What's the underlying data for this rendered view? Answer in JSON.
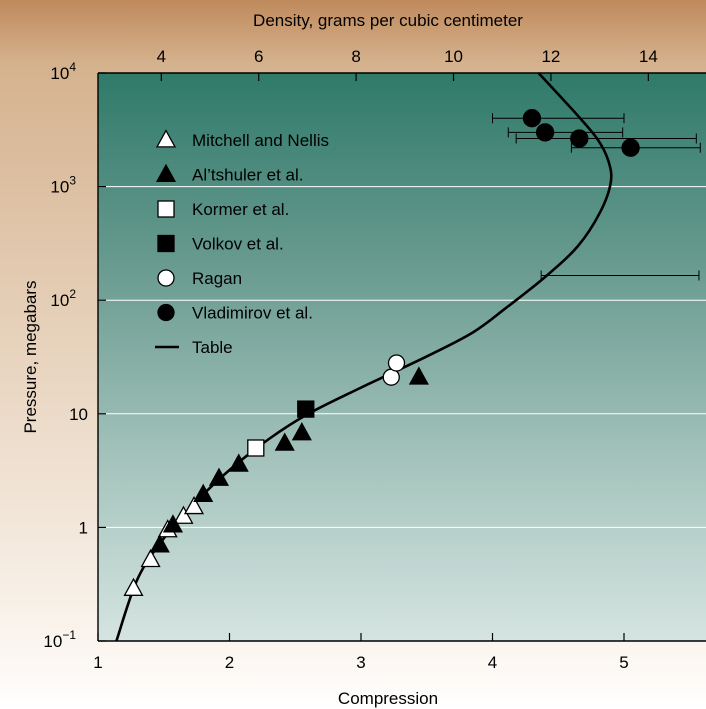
{
  "chart_data": {
    "type": "scatter",
    "xlabel": "Compression",
    "ylabel": "Pressure, megabars",
    "x2label": "Density, grams per cubic centimeter",
    "xlim": [
      1,
      5.6
    ],
    "ylim": [
      0.1,
      10000
    ],
    "yscale": "log",
    "x_ticks": [
      {
        "value": 1,
        "label": "1"
      },
      {
        "value": 2,
        "label": "2"
      },
      {
        "value": 3,
        "label": "3"
      },
      {
        "value": 4,
        "label": "4"
      },
      {
        "value": 5,
        "label": "5"
      }
    ],
    "x2_ticks": [
      {
        "value": 4,
        "label": "4"
      },
      {
        "value": 6,
        "label": "6"
      },
      {
        "value": 8,
        "label": "8"
      },
      {
        "value": 10,
        "label": "10"
      },
      {
        "value": 12,
        "label": "12"
      },
      {
        "value": 14,
        "label": "14"
      }
    ],
    "x2_per_x": 2.7,
    "y_ticks": [
      {
        "value": 0.1,
        "base": "10",
        "exp": "−1"
      },
      {
        "value": 1,
        "base": "1",
        "exp": ""
      },
      {
        "value": 10,
        "base": "10",
        "exp": ""
      },
      {
        "value": 100,
        "base": "10",
        "exp": "2"
      },
      {
        "value": 1000,
        "base": "10",
        "exp": "3"
      },
      {
        "value": 10000,
        "base": "10",
        "exp": "4"
      }
    ],
    "grid": "horizontal",
    "legend_position": "upper-left",
    "series": [
      {
        "name": "Mitchell and Nellis",
        "marker": "triangle-open",
        "points": [
          [
            1.27,
            0.29
          ],
          [
            1.4,
            0.52
          ],
          [
            1.53,
            0.95
          ],
          [
            1.65,
            1.25
          ],
          [
            1.73,
            1.52
          ]
        ]
      },
      {
        "name": "Al’tshuler et al.",
        "marker": "triangle-filled",
        "points": [
          [
            1.47,
            0.7
          ],
          [
            1.57,
            1.05
          ],
          [
            1.8,
            1.95
          ],
          [
            1.92,
            2.7
          ],
          [
            2.07,
            3.6
          ],
          [
            2.42,
            5.5
          ],
          [
            2.55,
            6.8
          ],
          [
            3.44,
            21
          ]
        ]
      },
      {
        "name": "Kormer et al.",
        "marker": "square-open",
        "points": [
          [
            2.2,
            5.0
          ]
        ]
      },
      {
        "name": "Volkov et al.",
        "marker": "square-filled",
        "points": [
          [
            2.58,
            11
          ]
        ]
      },
      {
        "name": "Ragan",
        "marker": "circle-open",
        "points": [
          [
            3.23,
            21
          ],
          [
            3.27,
            28
          ]
        ]
      },
      {
        "name": "Vladimirov et al.",
        "marker": "circle-filled",
        "points": [
          [
            4.3,
            4000
          ],
          [
            4.4,
            3000
          ],
          [
            4.66,
            2650
          ],
          [
            5.05,
            2200
          ]
        ],
        "xerr": [
          [
            4.0,
            5.0
          ],
          [
            4.12,
            4.99
          ],
          [
            4.18,
            5.55
          ],
          [
            4.6,
            5.58
          ]
        ]
      },
      {
        "name": "Table",
        "marker": "line",
        "curve": [
          [
            1.14,
            0.1
          ],
          [
            1.3,
            0.35
          ],
          [
            1.5,
            0.8
          ],
          [
            1.75,
            1.7
          ],
          [
            2.0,
            3.2
          ],
          [
            2.3,
            6.0
          ],
          [
            2.6,
            10
          ],
          [
            3.0,
            17
          ],
          [
            3.5,
            32
          ],
          [
            3.85,
            52
          ],
          [
            4.1,
            85
          ],
          [
            4.4,
            160
          ],
          [
            4.65,
            300
          ],
          [
            4.82,
            600
          ],
          [
            4.9,
            1100
          ],
          [
            4.88,
            1700
          ],
          [
            4.8,
            2600
          ],
          [
            4.65,
            4200
          ],
          [
            4.5,
            6500
          ],
          [
            4.35,
            10000
          ]
        ]
      }
    ],
    "extra_error_bars": [
      {
        "y": 165,
        "x_range": [
          4.37,
          5.57
        ]
      }
    ]
  }
}
